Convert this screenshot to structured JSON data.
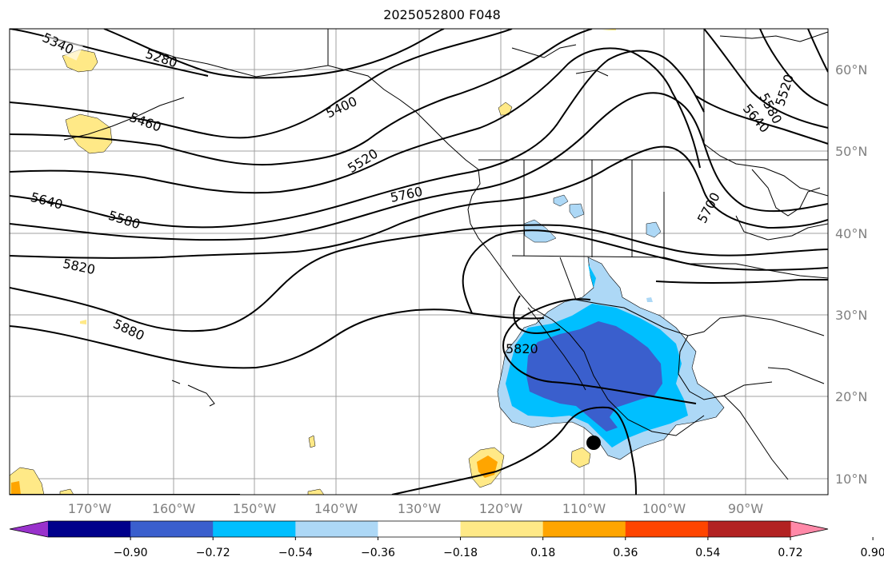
{
  "title": "2025052800 F048",
  "lat_labels": [
    "60°N",
    "50°N",
    "40°N",
    "30°N",
    "20°N",
    "10°N"
  ],
  "lon_labels": [
    "170°W",
    "160°W",
    "150°W",
    "140°W",
    "130°W",
    "120°W",
    "110°W",
    "100°W",
    "90°W"
  ],
  "contour_labels": [
    "5340",
    "5280",
    "5400",
    "5460",
    "5520",
    "5520",
    "5580",
    "5640",
    "5760",
    "5700",
    "5640",
    "5580",
    "5820",
    "5880",
    "5820"
  ],
  "colorbar": {
    "colors": [
      "#9932cc",
      "#00008b",
      "#3a5fcd",
      "#00bfff",
      "#add8f6",
      "#ffffff",
      "#ffe987",
      "#ffa500",
      "#ff4500",
      "#b22222",
      "#ff89a8"
    ],
    "tick_labels": [
      "−0.90",
      "−0.72",
      "−0.54",
      "−0.36",
      "−0.18",
      "0.18",
      "0.36",
      "0.54",
      "0.72",
      "0.90"
    ]
  },
  "marker": "black-dot"
}
